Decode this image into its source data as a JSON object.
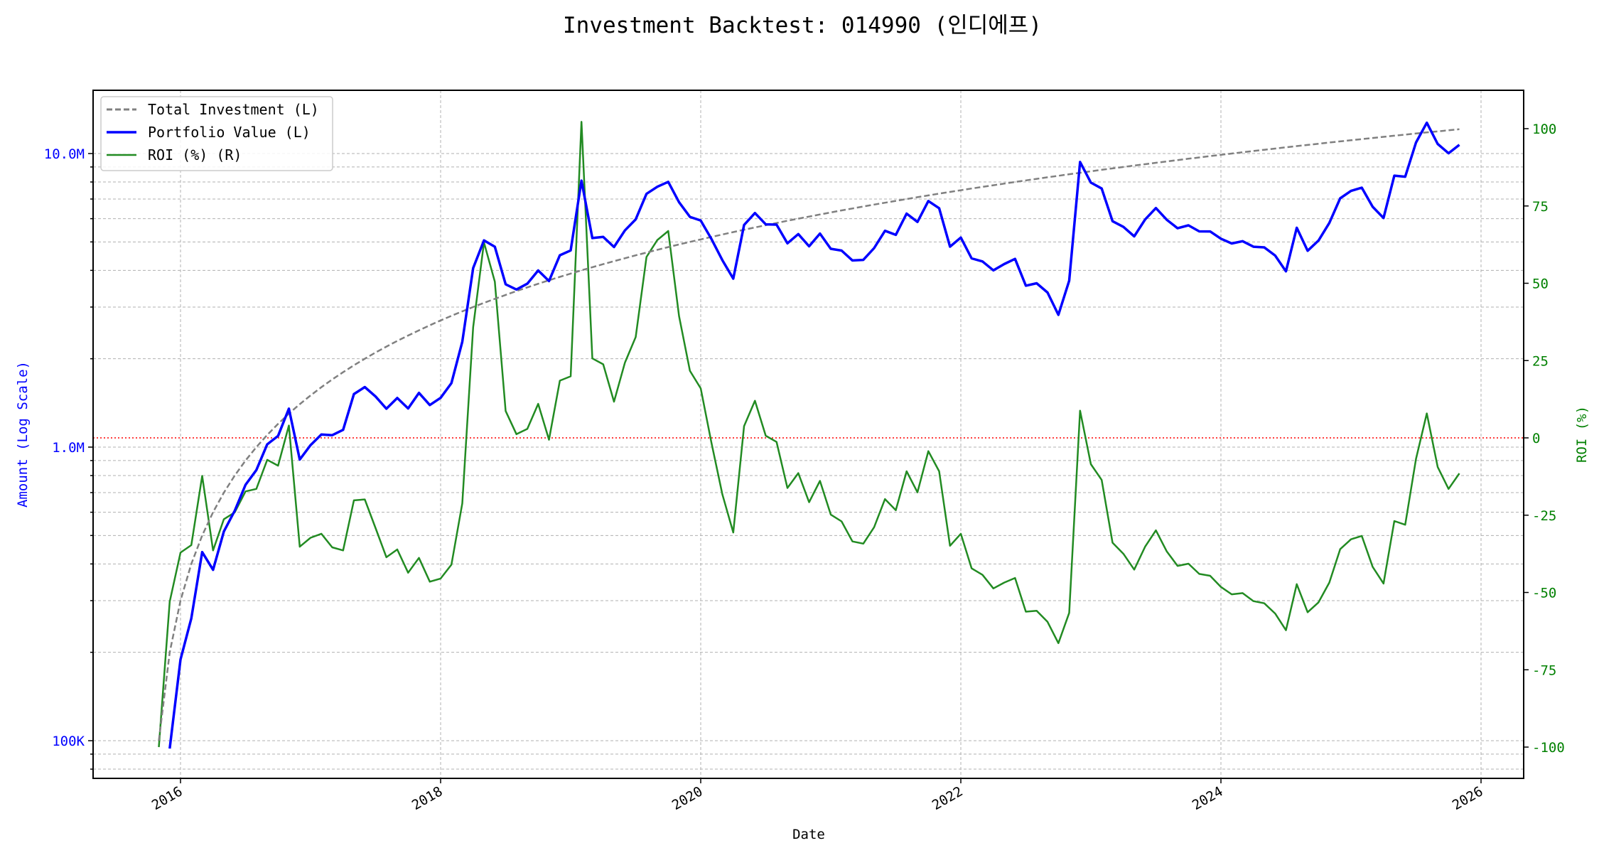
{
  "chart_data": {
    "type": "line",
    "title": "Investment Backtest: 014990 (인디에프)",
    "xlabel": "Date",
    "ylabel_left": "Amount (Log Scale)",
    "ylabel_right": "ROI (%)",
    "x_start": "2015-11",
    "x_frequency": "monthly",
    "x_ticks": [
      "2016",
      "2018",
      "2020",
      "2022",
      "2024",
      "2026"
    ],
    "y_left_scale": "log",
    "y_left_ticks": [
      {
        "value": 100000,
        "label": "100K"
      },
      {
        "value": 1000000,
        "label": "1.0M"
      },
      {
        "value": 10000000,
        "label": "10.0M"
      }
    ],
    "y_left_range": [
      74000,
      16400000
    ],
    "y_right_ticks": [
      -100,
      -75,
      -50,
      -25,
      0,
      25,
      50,
      75,
      100
    ],
    "y_right_range": [
      -110,
      112.6
    ],
    "reference_line": {
      "axis": "right",
      "value": 0,
      "color": "#ff0000",
      "style": "dotted"
    },
    "grid": true,
    "legend_position": "upper-left",
    "legend": [
      "Total Investment (L)",
      "Portfolio Value (L)",
      "ROI (%) (R)"
    ],
    "series": [
      {
        "name": "Total Investment (L)",
        "axis": "left",
        "unit": "KRW thousands",
        "color": "#808080",
        "style": "dashed",
        "values": [
          100,
          200,
          300,
          400,
          500,
          600,
          700,
          800,
          900,
          1000,
          1100,
          1200,
          1300,
          1400,
          1500,
          1600,
          1700,
          1800,
          1900,
          2000,
          2100,
          2200,
          2300,
          2400,
          2500,
          2600,
          2700,
          2800,
          2900,
          3000,
          3100,
          3200,
          3300,
          3400,
          3500,
          3600,
          3700,
          3800,
          3900,
          4000,
          4100,
          4200,
          4300,
          4400,
          4500,
          4600,
          4700,
          4800,
          4900,
          5000,
          5100,
          5200,
          5300,
          5400,
          5500,
          5600,
          5700,
          5800,
          5900,
          6000,
          6100,
          6200,
          6300,
          6400,
          6500,
          6600,
          6700,
          6800,
          6900,
          7000,
          7100,
          7200,
          7300,
          7400,
          7500,
          7600,
          7700,
          7800,
          7900,
          8000,
          8100,
          8200,
          8300,
          8400,
          8500,
          8600,
          8700,
          8800,
          8900,
          9000,
          9100,
          9200,
          9300,
          9400,
          9500,
          9600,
          9700,
          9800,
          9900,
          10000,
          10100,
          10200,
          10300,
          10400,
          10500,
          10600,
          10700,
          10800,
          10900,
          11000,
          11100,
          11200,
          11300,
          11400,
          11500,
          11600,
          11700,
          11800,
          11900,
          12000,
          12100
        ]
      },
      {
        "name": "Portfolio Value (L)",
        "axis": "left",
        "unit": "KRW thousands",
        "color": "#0000ff",
        "style": "solid",
        "values": [
          0,
          94,
          189,
          261,
          439,
          382,
          516,
          607,
          744,
          835,
          1022,
          1092,
          1352,
          907,
          1016,
          1104,
          1098,
          1145,
          1516,
          1602,
          1487,
          1351,
          1470,
          1354,
          1530,
          1391,
          1472,
          1652,
          2285,
          4074,
          5059,
          4816,
          3587,
          3441,
          3602,
          3996,
          3678,
          4503,
          4676,
          8088,
          5154,
          5200,
          4803,
          5469,
          5967,
          7291,
          7708,
          8011,
          6831,
          6085,
          5916,
          5112,
          4330,
          3748,
          5709,
          6272,
          5740,
          5725,
          4944,
          5316,
          4831,
          5338,
          4738,
          4672,
          4323,
          4343,
          4764,
          5454,
          5285,
          6244,
          5850,
          6890,
          6512,
          4817,
          5175,
          4393,
          4289,
          4001,
          4203,
          4376,
          3548,
          3616,
          3362,
          2822,
          3689,
          9357,
          7961,
          7603,
          5883,
          5625,
          5223,
          5962,
          6519,
          5950,
          5567,
          5693,
          5432,
          5429,
          5128,
          4940,
          5030,
          4814,
          4790,
          4493,
          3969,
          5586,
          4665,
          5054,
          5799,
          7040,
          7459,
          7650,
          6588,
          6031,
          8407,
          8340,
          10904,
          12732,
          10781,
          10020,
          10709
        ]
      },
      {
        "name": "ROI (%) (R)",
        "axis": "right",
        "unit": "%",
        "color": "#228b22",
        "style": "solid",
        "values": [
          -100,
          -53,
          -37.1,
          -34.7,
          -12.3,
          -36.4,
          -26.3,
          -24.1,
          -17.3,
          -16.5,
          -7.1,
          -9.0,
          4.0,
          -35.2,
          -32.3,
          -31.0,
          -35.4,
          -36.4,
          -20.2,
          -19.9,
          -29.2,
          -38.6,
          -36.1,
          -43.6,
          -38.8,
          -46.5,
          -45.5,
          -41.0,
          -21.2,
          35.8,
          63.2,
          50.5,
          8.7,
          1.2,
          2.9,
          11.0,
          -0.6,
          18.5,
          19.9,
          102.2,
          25.7,
          23.8,
          11.7,
          24.3,
          32.6,
          58.5,
          64.0,
          66.9,
          39.4,
          21.7,
          16.0,
          -1.7,
          -18.3,
          -30.6,
          3.8,
          12.0,
          0.7,
          -1.3,
          -16.2,
          -11.4,
          -20.8,
          -13.9,
          -24.8,
          -27.0,
          -33.5,
          -34.2,
          -28.9,
          -19.8,
          -23.4,
          -10.8,
          -17.6,
          -4.3,
          -10.8,
          -34.9,
          -31.0,
          -42.2,
          -44.3,
          -48.7,
          -46.8,
          -45.3,
          -56.2,
          -55.9,
          -59.5,
          -66.4,
          -56.6,
          8.8,
          -8.5,
          -13.6,
          -33.9,
          -37.5,
          -42.6,
          -35.2,
          -29.9,
          -36.7,
          -41.4,
          -40.7,
          -44.0,
          -44.6,
          -48.2,
          -50.6,
          -50.2,
          -52.8,
          -53.5,
          -56.8,
          -62.2,
          -47.3,
          -56.4,
          -53.2,
          -46.8,
          -36.0,
          -32.8,
          -31.7,
          -41.7,
          -47.1,
          -26.9,
          -28.1,
          -6.8,
          7.9,
          -9.4,
          -16.5,
          -11.5
        ]
      }
    ],
    "colors": {
      "left_axis": "#0000ff",
      "right_axis": "#008000"
    }
  }
}
